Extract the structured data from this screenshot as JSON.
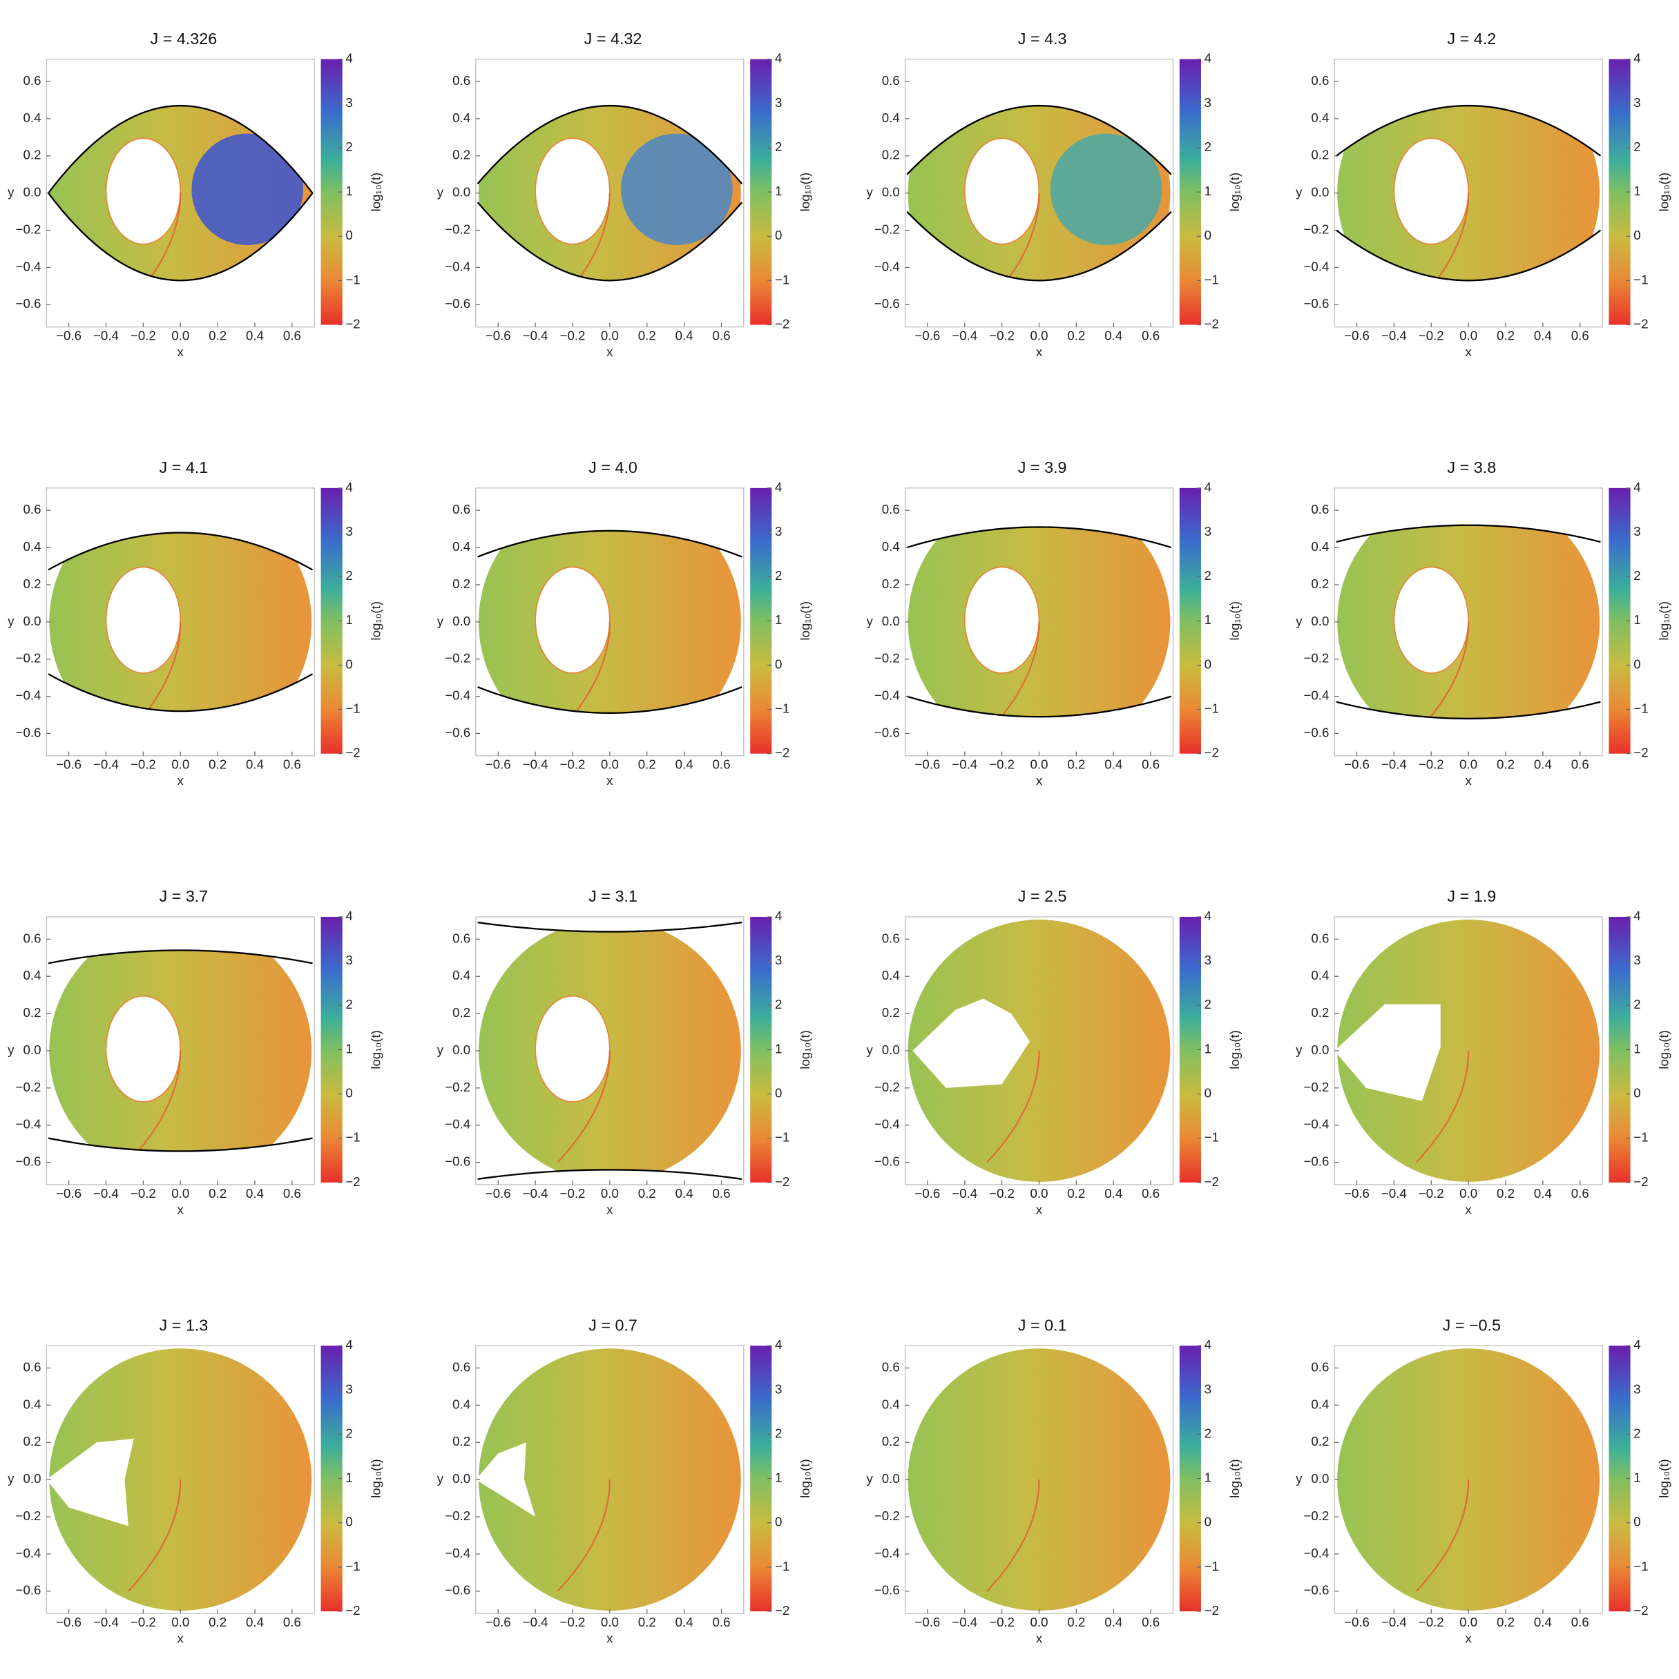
{
  "chart_data": [
    {
      "type": "heatmap",
      "title": "J = 4.326",
      "x_label": "x",
      "y_label": "y",
      "colorbar_label": "log₁₀(t)",
      "xlim": [
        -0.72,
        0.72
      ],
      "ylim": [
        -0.72,
        0.72
      ],
      "clim": [
        -2,
        4
      ],
      "xticks": [
        {
          "value": -0.6,
          "label": "−0.6"
        },
        {
          "value": -0.4,
          "label": "−0.4"
        },
        {
          "value": -0.2,
          "label": "−0.2"
        },
        {
          "value": 0,
          "label": "0.0"
        },
        0.2,
        0.4,
        0.6
      ],
      "yticks": [
        {
          "value": -0.6,
          "label": "−0.6"
        },
        {
          "value": -0.4,
          "label": "−0.4"
        },
        {
          "value": -0.2,
          "label": "−0.2"
        },
        {
          "value": 0,
          "label": "0.0"
        },
        0.2,
        0.4,
        0.6
      ],
      "cticks": [
        {
          "value": -2,
          "label": "−2"
        },
        {
          "value": -1,
          "label": "−1"
        },
        0,
        1,
        2,
        3,
        4
      ]
    },
    {
      "type": "heatmap",
      "title": "J = 4.32",
      "x_label": "x",
      "y_label": "y",
      "colorbar_label": "log₁₀(t)",
      "xlim": [
        -0.72,
        0.72
      ],
      "ylim": [
        -0.72,
        0.72
      ],
      "clim": [
        -2,
        4
      ],
      "xticks": [
        {
          "value": -0.6,
          "label": "−0.6"
        },
        {
          "value": -0.4,
          "label": "−0.4"
        },
        {
          "value": -0.2,
          "label": "−0.2"
        },
        {
          "value": 0,
          "label": "0.0"
        },
        0.2,
        0.4,
        0.6
      ],
      "yticks": [
        {
          "value": -0.6,
          "label": "−0.6"
        },
        {
          "value": -0.4,
          "label": "−0.4"
        },
        {
          "value": -0.2,
          "label": "−0.2"
        },
        {
          "value": 0,
          "label": "0.0"
        },
        0.2,
        0.4,
        0.6
      ],
      "cticks": [
        {
          "value": -2,
          "label": "−2"
        },
        {
          "value": -1,
          "label": "−1"
        },
        0,
        1,
        2,
        3,
        4
      ]
    },
    {
      "type": "heatmap",
      "title": "J = 4.3",
      "x_label": "x",
      "y_label": "y",
      "colorbar_label": "log₁₀(t)",
      "xlim": [
        -0.72,
        0.72
      ],
      "ylim": [
        -0.72,
        0.72
      ],
      "clim": [
        -2,
        4
      ],
      "xticks": [
        {
          "value": -0.6,
          "label": "−0.6"
        },
        {
          "value": -0.4,
          "label": "−0.4"
        },
        {
          "value": -0.2,
          "label": "−0.2"
        },
        {
          "value": 0,
          "label": "0.0"
        },
        0.2,
        0.4,
        0.6
      ],
      "yticks": [
        {
          "value": -0.6,
          "label": "−0.6"
        },
        {
          "value": -0.4,
          "label": "−0.4"
        },
        {
          "value": -0.2,
          "label": "−0.2"
        },
        {
          "value": 0,
          "label": "0.0"
        },
        0.2,
        0.4,
        0.6
      ],
      "cticks": [
        {
          "value": -2,
          "label": "−2"
        },
        {
          "value": -1,
          "label": "−1"
        },
        0,
        1,
        2,
        3,
        4
      ]
    },
    {
      "type": "heatmap",
      "title": "J = 4.2",
      "x_label": "x",
      "y_label": "y",
      "colorbar_label": "log₁₀(t)",
      "xlim": [
        -0.72,
        0.72
      ],
      "ylim": [
        -0.72,
        0.72
      ],
      "clim": [
        -2,
        4
      ],
      "xticks": [
        {
          "value": -0.6,
          "label": "−0.6"
        },
        {
          "value": -0.4,
          "label": "−0.4"
        },
        {
          "value": -0.2,
          "label": "−0.2"
        },
        {
          "value": 0,
          "label": "0.0"
        },
        0.2,
        0.4,
        0.6
      ],
      "yticks": [
        {
          "value": -0.6,
          "label": "−0.6"
        },
        {
          "value": -0.4,
          "label": "−0.4"
        },
        {
          "value": -0.2,
          "label": "−0.2"
        },
        {
          "value": 0,
          "label": "0.0"
        },
        0.2,
        0.4,
        0.6
      ],
      "cticks": [
        {
          "value": -2,
          "label": "−2"
        },
        {
          "value": -1,
          "label": "−1"
        },
        0,
        1,
        2,
        3,
        4
      ]
    },
    {
      "type": "heatmap",
      "title": "J = 4.1",
      "x_label": "x",
      "y_label": "y",
      "colorbar_label": "log₁₀(t)",
      "xlim": [
        -0.72,
        0.72
      ],
      "ylim": [
        -0.72,
        0.72
      ],
      "clim": [
        -2,
        4
      ],
      "xticks": [
        {
          "value": -0.6,
          "label": "−0.6"
        },
        {
          "value": -0.4,
          "label": "−0.4"
        },
        {
          "value": -0.2,
          "label": "−0.2"
        },
        {
          "value": 0,
          "label": "0.0"
        },
        0.2,
        0.4,
        0.6
      ],
      "yticks": [
        {
          "value": -0.6,
          "label": "−0.6"
        },
        {
          "value": -0.4,
          "label": "−0.4"
        },
        {
          "value": -0.2,
          "label": "−0.2"
        },
        {
          "value": 0,
          "label": "0.0"
        },
        0.2,
        0.4,
        0.6
      ],
      "cticks": [
        {
          "value": -2,
          "label": "−2"
        },
        {
          "value": -1,
          "label": "−1"
        },
        0,
        1,
        2,
        3,
        4
      ]
    },
    {
      "type": "heatmap",
      "title": "J = 4.0",
      "x_label": "x",
      "y_label": "y",
      "colorbar_label": "log₁₀(t)",
      "xlim": [
        -0.72,
        0.72
      ],
      "ylim": [
        -0.72,
        0.72
      ],
      "clim": [
        -2,
        4
      ],
      "xticks": [
        {
          "value": -0.6,
          "label": "−0.6"
        },
        {
          "value": -0.4,
          "label": "−0.4"
        },
        {
          "value": -0.2,
          "label": "−0.2"
        },
        {
          "value": 0,
          "label": "0.0"
        },
        0.2,
        0.4,
        0.6
      ],
      "yticks": [
        {
          "value": -0.6,
          "label": "−0.6"
        },
        {
          "value": -0.4,
          "label": "−0.4"
        },
        {
          "value": -0.2,
          "label": "−0.2"
        },
        {
          "value": 0,
          "label": "0.0"
        },
        0.2,
        0.4,
        0.6
      ],
      "cticks": [
        {
          "value": -2,
          "label": "−2"
        },
        {
          "value": -1,
          "label": "−1"
        },
        0,
        1,
        2,
        3,
        4
      ]
    },
    {
      "type": "heatmap",
      "title": "J = 3.9",
      "x_label": "x",
      "y_label": "y",
      "colorbar_label": "log₁₀(t)",
      "xlim": [
        -0.72,
        0.72
      ],
      "ylim": [
        -0.72,
        0.72
      ],
      "clim": [
        -2,
        4
      ],
      "xticks": [
        {
          "value": -0.6,
          "label": "−0.6"
        },
        {
          "value": -0.4,
          "label": "−0.4"
        },
        {
          "value": -0.2,
          "label": "−0.2"
        },
        {
          "value": 0,
          "label": "0.0"
        },
        0.2,
        0.4,
        0.6
      ],
      "yticks": [
        {
          "value": -0.6,
          "label": "−0.6"
        },
        {
          "value": -0.4,
          "label": "−0.4"
        },
        {
          "value": -0.2,
          "label": "−0.2"
        },
        {
          "value": 0,
          "label": "0.0"
        },
        0.2,
        0.4,
        0.6
      ],
      "cticks": [
        {
          "value": -2,
          "label": "−2"
        },
        {
          "value": -1,
          "label": "−1"
        },
        0,
        1,
        2,
        3,
        4
      ]
    },
    {
      "type": "heatmap",
      "title": "J = 3.8",
      "x_label": "x",
      "y_label": "y",
      "colorbar_label": "log₁₀(t)",
      "xlim": [
        -0.72,
        0.72
      ],
      "ylim": [
        -0.72,
        0.72
      ],
      "clim": [
        -2,
        4
      ],
      "xticks": [
        {
          "value": -0.6,
          "label": "−0.6"
        },
        {
          "value": -0.4,
          "label": "−0.4"
        },
        {
          "value": -0.2,
          "label": "−0.2"
        },
        {
          "value": 0,
          "label": "0.0"
        },
        0.2,
        0.4,
        0.6
      ],
      "yticks": [
        {
          "value": -0.6,
          "label": "−0.6"
        },
        {
          "value": -0.4,
          "label": "−0.4"
        },
        {
          "value": -0.2,
          "label": "−0.2"
        },
        {
          "value": 0,
          "label": "0.0"
        },
        0.2,
        0.4,
        0.6
      ],
      "cticks": [
        {
          "value": -2,
          "label": "−2"
        },
        {
          "value": -1,
          "label": "−1"
        },
        0,
        1,
        2,
        3,
        4
      ]
    },
    {
      "type": "heatmap",
      "title": "J = 3.7",
      "x_label": "x",
      "y_label": "y",
      "colorbar_label": "log₁₀(t)",
      "xlim": [
        -0.72,
        0.72
      ],
      "ylim": [
        -0.72,
        0.72
      ],
      "clim": [
        -2,
        4
      ],
      "xticks": [
        {
          "value": -0.6,
          "label": "−0.6"
        },
        {
          "value": -0.4,
          "label": "−0.4"
        },
        {
          "value": -0.2,
          "label": "−0.2"
        },
        {
          "value": 0,
          "label": "0.0"
        },
        0.2,
        0.4,
        0.6
      ],
      "yticks": [
        {
          "value": -0.6,
          "label": "−0.6"
        },
        {
          "value": -0.4,
          "label": "−0.4"
        },
        {
          "value": -0.2,
          "label": "−0.2"
        },
        {
          "value": 0,
          "label": "0.0"
        },
        0.2,
        0.4,
        0.6
      ],
      "cticks": [
        {
          "value": -2,
          "label": "−2"
        },
        {
          "value": -1,
          "label": "−1"
        },
        0,
        1,
        2,
        3,
        4
      ]
    },
    {
      "type": "heatmap",
      "title": "J = 3.1",
      "x_label": "x",
      "y_label": "y",
      "colorbar_label": "log₁₀(t)",
      "xlim": [
        -0.72,
        0.72
      ],
      "ylim": [
        -0.72,
        0.72
      ],
      "clim": [
        -2,
        4
      ],
      "xticks": [
        {
          "value": -0.6,
          "label": "−0.6"
        },
        {
          "value": -0.4,
          "label": "−0.4"
        },
        {
          "value": -0.2,
          "label": "−0.2"
        },
        {
          "value": 0,
          "label": "0.0"
        },
        0.2,
        0.4,
        0.6
      ],
      "yticks": [
        {
          "value": -0.6,
          "label": "−0.6"
        },
        {
          "value": -0.4,
          "label": "−0.4"
        },
        {
          "value": -0.2,
          "label": "−0.2"
        },
        {
          "value": 0,
          "label": "0.0"
        },
        0.2,
        0.4,
        0.6
      ],
      "cticks": [
        {
          "value": -2,
          "label": "−2"
        },
        {
          "value": -1,
          "label": "−1"
        },
        0,
        1,
        2,
        3,
        4
      ]
    },
    {
      "type": "heatmap",
      "title": "J = 2.5",
      "x_label": "x",
      "y_label": "y",
      "colorbar_label": "log₁₀(t)",
      "xlim": [
        -0.72,
        0.72
      ],
      "ylim": [
        -0.72,
        0.72
      ],
      "clim": [
        -2,
        4
      ],
      "xticks": [
        {
          "value": -0.6,
          "label": "−0.6"
        },
        {
          "value": -0.4,
          "label": "−0.4"
        },
        {
          "value": -0.2,
          "label": "−0.2"
        },
        {
          "value": 0,
          "label": "0.0"
        },
        0.2,
        0.4,
        0.6
      ],
      "yticks": [
        {
          "value": -0.6,
          "label": "−0.6"
        },
        {
          "value": -0.4,
          "label": "−0.4"
        },
        {
          "value": -0.2,
          "label": "−0.2"
        },
        {
          "value": 0,
          "label": "0.0"
        },
        0.2,
        0.4,
        0.6
      ],
      "cticks": [
        {
          "value": -2,
          "label": "−2"
        },
        {
          "value": -1,
          "label": "−1"
        },
        0,
        1,
        2,
        3,
        4
      ]
    },
    {
      "type": "heatmap",
      "title": "J = 1.9",
      "x_label": "x",
      "y_label": "y",
      "colorbar_label": "log₁₀(t)",
      "xlim": [
        -0.72,
        0.72
      ],
      "ylim": [
        -0.72,
        0.72
      ],
      "clim": [
        -2,
        4
      ],
      "xticks": [
        {
          "value": -0.6,
          "label": "−0.6"
        },
        {
          "value": -0.4,
          "label": "−0.4"
        },
        {
          "value": -0.2,
          "label": "−0.2"
        },
        {
          "value": 0,
          "label": "0.0"
        },
        0.2,
        0.4,
        0.6
      ],
      "yticks": [
        {
          "value": -0.6,
          "label": "−0.6"
        },
        {
          "value": -0.4,
          "label": "−0.4"
        },
        {
          "value": -0.2,
          "label": "−0.2"
        },
        {
          "value": 0,
          "label": "0.0"
        },
        0.2,
        0.4,
        0.6
      ],
      "cticks": [
        {
          "value": -2,
          "label": "−2"
        },
        {
          "value": -1,
          "label": "−1"
        },
        0,
        1,
        2,
        3,
        4
      ]
    },
    {
      "type": "heatmap",
      "title": "J = 1.3",
      "x_label": "x",
      "y_label": "y",
      "colorbar_label": "log₁₀(t)",
      "xlim": [
        -0.72,
        0.72
      ],
      "ylim": [
        -0.72,
        0.72
      ],
      "clim": [
        -2,
        4
      ],
      "xticks": [
        {
          "value": -0.6,
          "label": "−0.6"
        },
        {
          "value": -0.4,
          "label": "−0.4"
        },
        {
          "value": -0.2,
          "label": "−0.2"
        },
        {
          "value": 0,
          "label": "0.0"
        },
        0.2,
        0.4,
        0.6
      ],
      "yticks": [
        {
          "value": -0.6,
          "label": "−0.6"
        },
        {
          "value": -0.4,
          "label": "−0.4"
        },
        {
          "value": -0.2,
          "label": "−0.2"
        },
        {
          "value": 0,
          "label": "0.0"
        },
        0.2,
        0.4,
        0.6
      ],
      "cticks": [
        {
          "value": -2,
          "label": "−2"
        },
        {
          "value": -1,
          "label": "−1"
        },
        0,
        1,
        2,
        3,
        4
      ]
    },
    {
      "type": "heatmap",
      "title": "J = 0.7",
      "x_label": "x",
      "y_label": "y",
      "colorbar_label": "log₁₀(t)",
      "xlim": [
        -0.72,
        0.72
      ],
      "ylim": [
        -0.72,
        0.72
      ],
      "clim": [
        -2,
        4
      ],
      "xticks": [
        {
          "value": -0.6,
          "label": "−0.6"
        },
        {
          "value": -0.4,
          "label": "−0.4"
        },
        {
          "value": -0.2,
          "label": "−0.2"
        },
        {
          "value": 0,
          "label": "0.0"
        },
        0.2,
        0.4,
        0.6
      ],
      "yticks": [
        {
          "value": -0.6,
          "label": "−0.6"
        },
        {
          "value": -0.4,
          "label": "−0.4"
        },
        {
          "value": -0.2,
          "label": "−0.2"
        },
        {
          "value": 0,
          "label": "0.0"
        },
        0.2,
        0.4,
        0.6
      ],
      "cticks": [
        {
          "value": -2,
          "label": "−2"
        },
        {
          "value": -1,
          "label": "−1"
        },
        0,
        1,
        2,
        3,
        4
      ]
    },
    {
      "type": "heatmap",
      "title": "J = 0.1",
      "x_label": "x",
      "y_label": "y",
      "colorbar_label": "log₁₀(t)",
      "xlim": [
        -0.72,
        0.72
      ],
      "ylim": [
        -0.72,
        0.72
      ],
      "clim": [
        -2,
        4
      ],
      "xticks": [
        {
          "value": -0.6,
          "label": "−0.6"
        },
        {
          "value": -0.4,
          "label": "−0.4"
        },
        {
          "value": -0.2,
          "label": "−0.2"
        },
        {
          "value": 0,
          "label": "0.0"
        },
        0.2,
        0.4,
        0.6
      ],
      "yticks": [
        {
          "value": -0.6,
          "label": "−0.6"
        },
        {
          "value": -0.4,
          "label": "−0.4"
        },
        {
          "value": -0.2,
          "label": "−0.2"
        },
        {
          "value": 0,
          "label": "0.0"
        },
        0.2,
        0.4,
        0.6
      ],
      "cticks": [
        {
          "value": -2,
          "label": "−2"
        },
        {
          "value": -1,
          "label": "−1"
        },
        0,
        1,
        2,
        3,
        4
      ]
    },
    {
      "type": "heatmap",
      "title": "J = −0.5",
      "x_label": "x",
      "y_label": "y",
      "colorbar_label": "log₁₀(t)",
      "xlim": [
        -0.72,
        0.72
      ],
      "ylim": [
        -0.72,
        0.72
      ],
      "clim": [
        -2,
        4
      ],
      "xticks": [
        {
          "value": -0.6,
          "label": "−0.6"
        },
        {
          "value": -0.4,
          "label": "−0.4"
        },
        {
          "value": -0.2,
          "label": "−0.2"
        },
        {
          "value": 0,
          "label": "0.0"
        },
        0.2,
        0.4,
        0.6
      ],
      "yticks": [
        {
          "value": -0.6,
          "label": "−0.6"
        },
        {
          "value": -0.4,
          "label": "−0.4"
        },
        {
          "value": -0.2,
          "label": "−0.2"
        },
        {
          "value": 0,
          "label": "0.0"
        },
        0.2,
        0.4,
        0.6
      ],
      "cticks": [
        {
          "value": -2,
          "label": "−2"
        },
        {
          "value": -1,
          "label": "−1"
        },
        0,
        1,
        2,
        3,
        4
      ]
    }
  ]
}
